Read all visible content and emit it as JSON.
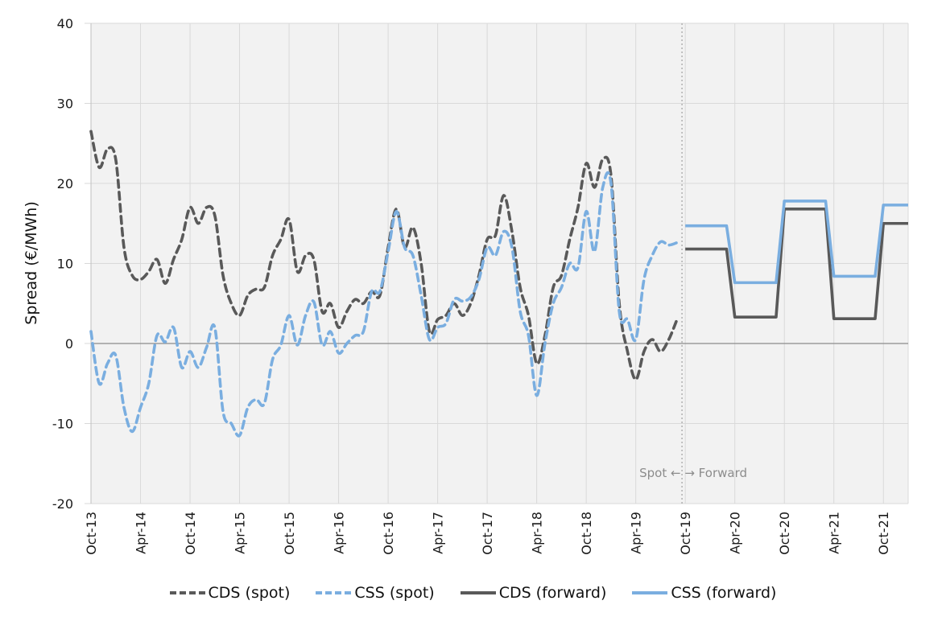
{
  "chart_data": {
    "type": "line",
    "title": "",
    "xlabel": "",
    "ylabel": "Spread (€/MWh)",
    "ylim": [
      -20,
      40
    ],
    "yticks": [
      -20,
      -10,
      0,
      10,
      20,
      30,
      40
    ],
    "grid": true,
    "x_start": "Oct-13",
    "x_unit": "month",
    "x_range_months": [
      0,
      99
    ],
    "xtick_labels": [
      "Oct-13",
      "Apr-14",
      "Oct-14",
      "Apr-15",
      "Oct-15",
      "Apr-16",
      "Oct-16",
      "Apr-17",
      "Oct-17",
      "Apr-18",
      "Oct-18",
      "Apr-19",
      "Oct-19",
      "Apr-20",
      "Oct-20",
      "Apr-21",
      "Oct-21"
    ],
    "xtick_months": [
      0,
      6,
      12,
      18,
      24,
      30,
      36,
      42,
      48,
      54,
      60,
      66,
      72,
      78,
      84,
      90,
      96
    ],
    "divider": {
      "month": 71.6,
      "left_label": "Spot",
      "right_label": "Forward",
      "text": "Spot ← → Forward"
    },
    "legend_position": "bottom",
    "series": [
      {
        "name": "CDS (spot)",
        "color": "#595959",
        "style": "dashed",
        "x_months_start": 0,
        "values": [
          26.5,
          22,
          24.3,
          23,
          12,
          8.5,
          8,
          9,
          10.5,
          7.5,
          10.5,
          13,
          17,
          15,
          17,
          16,
          8.5,
          5,
          3.5,
          6,
          6.8,
          7,
          11,
          13,
          15.5,
          9,
          11,
          10.5,
          4,
          5,
          2,
          4,
          5.5,
          5,
          6.5,
          6,
          12,
          16.8,
          12,
          14.5,
          10,
          1.5,
          3,
          3.5,
          5,
          3.5,
          5,
          8.5,
          13,
          13.5,
          18.5,
          14,
          7,
          3.5,
          -2.5,
          1,
          7,
          8.5,
          13,
          17,
          22.5,
          19.5,
          23,
          21,
          5,
          -1,
          -4.5,
          -1,
          0.5,
          -1,
          0.5,
          3
        ]
      },
      {
        "name": "CSS (spot)",
        "color": "#7aaee0",
        "style": "dashed",
        "x_months_start": 0,
        "values": [
          1.5,
          -5,
          -2.5,
          -1.5,
          -8,
          -11,
          -8,
          -5,
          1,
          0.2,
          2,
          -3,
          -1,
          -3,
          -0.5,
          2,
          -8.5,
          -10,
          -11.5,
          -8,
          -7,
          -7.5,
          -2,
          -0.2,
          3.5,
          -0.2,
          3.5,
          5.2,
          -0.2,
          1.5,
          -1.2,
          0,
          1,
          1.5,
          6.5,
          6.5,
          11.5,
          16.5,
          12,
          11,
          6,
          0.5,
          2,
          2.5,
          5.5,
          5.3,
          5.8,
          8,
          12,
          11,
          14,
          12,
          4,
          1,
          -6.5,
          0,
          5,
          7,
          10,
          9.5,
          16.5,
          11.5,
          19.5,
          20,
          4,
          3,
          0.5,
          8,
          11,
          12.7,
          12.3,
          12.6
        ]
      },
      {
        "name": "CDS (forward)",
        "color": "#595959",
        "style": "solid",
        "points": [
          [
            72,
            11.8
          ],
          [
            77,
            11.8
          ],
          [
            78,
            3.3
          ],
          [
            83,
            3.3
          ],
          [
            84,
            16.8
          ],
          [
            89,
            16.8
          ],
          [
            90,
            3.1
          ],
          [
            95,
            3.1
          ],
          [
            96,
            15.0
          ],
          [
            99,
            15.0
          ]
        ]
      },
      {
        "name": "CSS (forward)",
        "color": "#7aaee0",
        "style": "solid",
        "points": [
          [
            72,
            14.7
          ],
          [
            77,
            14.7
          ],
          [
            78,
            7.6
          ],
          [
            83,
            7.6
          ],
          [
            84,
            17.8
          ],
          [
            89,
            17.8
          ],
          [
            90,
            8.4
          ],
          [
            95,
            8.4
          ],
          [
            96,
            17.3
          ],
          [
            99,
            17.3
          ]
        ]
      }
    ]
  }
}
